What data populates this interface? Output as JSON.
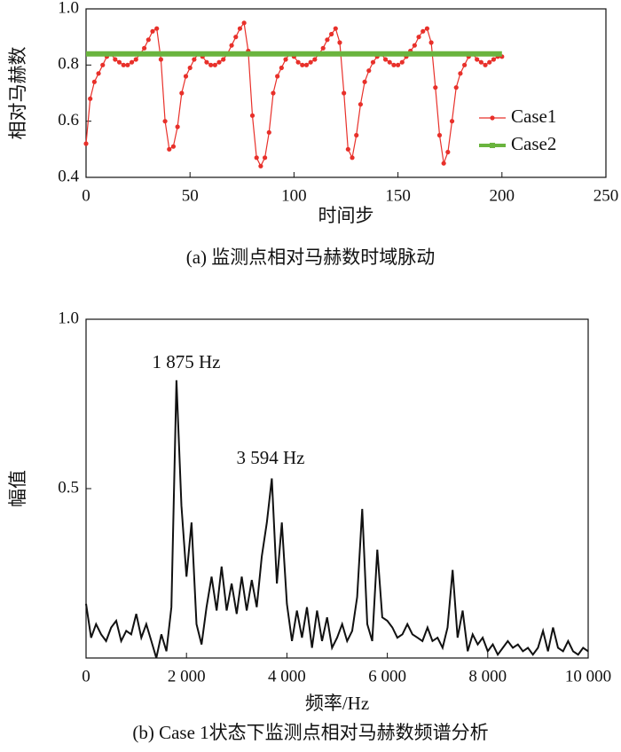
{
  "chart_data": [
    {
      "type": "line",
      "xlabel": "时间步",
      "ylabel": "相对马赫数",
      "caption": "(a) 监测点相对马赫数时域脉动",
      "xlim": [
        0,
        250
      ],
      "xticks": [
        0,
        50,
        100,
        150,
        200,
        250
      ],
      "ylim": [
        0.4,
        1
      ],
      "yticks": [
        0.4,
        0.6,
        0.8,
        {
          "value": 1,
          "label": "1.0"
        }
      ],
      "legend": "center right",
      "series": [
        {
          "name": "Case1",
          "color": "#e8302a",
          "marker": "circle",
          "x": [
            0,
            2,
            4,
            6,
            8,
            10,
            12,
            14,
            16,
            18,
            20,
            22,
            24,
            26,
            28,
            30,
            32,
            34,
            36,
            38,
            40,
            42,
            44,
            46,
            48,
            50,
            52,
            54,
            56,
            58,
            60,
            62,
            64,
            66,
            68,
            70,
            72,
            74,
            76,
            78,
            80,
            82,
            84,
            86,
            88,
            90,
            92,
            94,
            96,
            98,
            100,
            102,
            104,
            106,
            108,
            110,
            112,
            114,
            116,
            118,
            120,
            122,
            124,
            126,
            128,
            130,
            132,
            134,
            136,
            138,
            140,
            142,
            144,
            146,
            148,
            150,
            152,
            154,
            156,
            158,
            160,
            162,
            164,
            166,
            168,
            170,
            172,
            174,
            176,
            178,
            180,
            182,
            184,
            186,
            188,
            190,
            192,
            194,
            196,
            198,
            200
          ],
          "values": [
            0.52,
            0.68,
            0.74,
            0.77,
            0.8,
            0.83,
            0.84,
            0.82,
            0.81,
            0.8,
            0.8,
            0.81,
            0.82,
            0.84,
            0.86,
            0.89,
            0.92,
            0.93,
            0.82,
            0.6,
            0.5,
            0.51,
            0.58,
            0.7,
            0.76,
            0.79,
            0.82,
            0.84,
            0.83,
            0.81,
            0.8,
            0.8,
            0.81,
            0.82,
            0.84,
            0.87,
            0.9,
            0.93,
            0.95,
            0.85,
            0.62,
            0.47,
            0.44,
            0.47,
            0.56,
            0.7,
            0.76,
            0.79,
            0.82,
            0.84,
            0.83,
            0.81,
            0.8,
            0.8,
            0.81,
            0.82,
            0.84,
            0.86,
            0.89,
            0.91,
            0.93,
            0.88,
            0.7,
            0.5,
            0.47,
            0.55,
            0.66,
            0.74,
            0.78,
            0.81,
            0.83,
            0.84,
            0.82,
            0.81,
            0.8,
            0.8,
            0.81,
            0.83,
            0.85,
            0.87,
            0.9,
            0.92,
            0.93,
            0.88,
            0.72,
            0.55,
            0.45,
            0.49,
            0.6,
            0.72,
            0.77,
            0.8,
            0.83,
            0.84,
            0.82,
            0.81,
            0.8,
            0.81,
            0.82,
            0.83,
            0.83
          ]
        },
        {
          "name": "Case2",
          "color": "#6ab43e",
          "x": [
            0,
            200
          ],
          "values": [
            0.84,
            0.84
          ]
        }
      ]
    },
    {
      "type": "line",
      "xlabel": "频率/Hz",
      "ylabel": "幅值",
      "caption": "(b) Case 1状态下监测点相对马赫数频谱分析",
      "annotations": [
        "1 875 Hz",
        "3 594 Hz"
      ],
      "xlim": [
        0,
        10000
      ],
      "xticks": [
        0,
        {
          "value": 2000,
          "label": "2 000"
        },
        {
          "value": 4000,
          "label": "4 000"
        },
        {
          "value": 6000,
          "label": "6 000"
        },
        {
          "value": 8000,
          "label": "8 000"
        },
        {
          "value": 10000,
          "label": "10 000"
        }
      ],
      "ylim": [
        0,
        1
      ],
      "yticks": [
        0.5,
        {
          "value": 1,
          "label": "1.0"
        }
      ],
      "series": [
        {
          "color": "#111111",
          "x": [
            0,
            100,
            200,
            300,
            400,
            500,
            600,
            700,
            800,
            900,
            1000,
            1100,
            1200,
            1300,
            1400,
            1500,
            1600,
            1700,
            1800,
            1900,
            2000,
            2100,
            2200,
            2300,
            2400,
            2500,
            2600,
            2700,
            2800,
            2900,
            3000,
            3100,
            3200,
            3300,
            3400,
            3500,
            3600,
            3700,
            3800,
            3900,
            4000,
            4100,
            4200,
            4300,
            4400,
            4500,
            4600,
            4700,
            4800,
            4900,
            5000,
            5100,
            5200,
            5300,
            5400,
            5500,
            5600,
            5700,
            5800,
            5900,
            6000,
            6100,
            6200,
            6300,
            6400,
            6500,
            6600,
            6700,
            6800,
            6900,
            7000,
            7100,
            7200,
            7300,
            7400,
            7500,
            7600,
            7700,
            7800,
            7900,
            8000,
            8100,
            8200,
            8300,
            8400,
            8500,
            8600,
            8700,
            8800,
            8900,
            9000,
            9100,
            9200,
            9300,
            9400,
            9500,
            9600,
            9700,
            9800,
            9900,
            10000
          ],
          "values": [
            0.16,
            0.06,
            0.1,
            0.07,
            0.05,
            0.09,
            0.11,
            0.05,
            0.08,
            0.07,
            0.13,
            0.06,
            0.1,
            0.05,
            0.0,
            0.07,
            0.02,
            0.15,
            0.82,
            0.45,
            0.24,
            0.4,
            0.1,
            0.04,
            0.15,
            0.24,
            0.14,
            0.27,
            0.14,
            0.22,
            0.13,
            0.24,
            0.14,
            0.23,
            0.15,
            0.3,
            0.4,
            0.53,
            0.22,
            0.4,
            0.16,
            0.05,
            0.14,
            0.06,
            0.15,
            0.03,
            0.14,
            0.05,
            0.12,
            0.03,
            0.06,
            0.1,
            0.05,
            0.08,
            0.18,
            0.44,
            0.1,
            0.05,
            0.32,
            0.12,
            0.11,
            0.09,
            0.06,
            0.07,
            0.1,
            0.07,
            0.06,
            0.05,
            0.09,
            0.05,
            0.06,
            0.03,
            0.09,
            0.26,
            0.06,
            0.14,
            0.02,
            0.07,
            0.04,
            0.06,
            0.02,
            0.04,
            0.01,
            0.03,
            0.05,
            0.03,
            0.04,
            0.02,
            0.03,
            0.01,
            0.03,
            0.08,
            0.02,
            0.09,
            0.03,
            0.02,
            0.05,
            0.02,
            0.01,
            0.03,
            0.02
          ]
        }
      ]
    }
  ]
}
